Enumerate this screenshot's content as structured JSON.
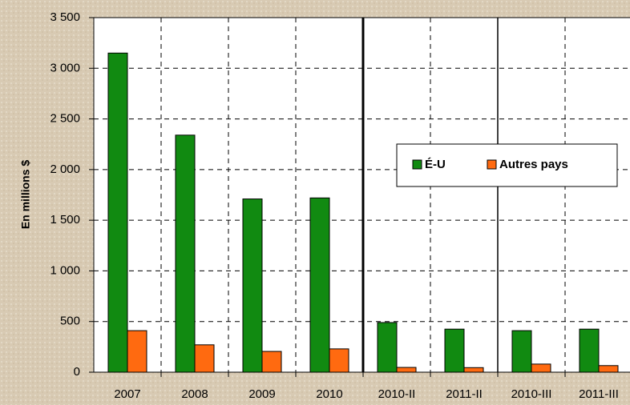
{
  "chart_data": {
    "type": "bar",
    "y_label": "En millions $",
    "categories": [
      "2007",
      "2008",
      "2009",
      "2010",
      "2010-II",
      "2011-II",
      "2010-III",
      "2011-III"
    ],
    "series": [
      {
        "name": "É-U",
        "color": "#118a11",
        "values": [
          3150,
          2340,
          1710,
          1720,
          490,
          425,
          410,
          425
        ]
      },
      {
        "name": "Autres pays",
        "color": "#ff6a10",
        "values": [
          410,
          270,
          205,
          230,
          47,
          45,
          80,
          65
        ]
      }
    ],
    "ylim": [
      0,
      3500
    ],
    "yticks": [
      0,
      500,
      {
        "value": 1000,
        "label": "1 000"
      },
      {
        "value": 1500,
        "label": "1 500"
      },
      {
        "value": 2000,
        "label": "2 000"
      },
      {
        "value": 2500,
        "label": "2 500"
      },
      {
        "value": 3000,
        "label": "3 000"
      },
      {
        "value": 3500,
        "label": "3 500"
      }
    ],
    "grid": true
  }
}
